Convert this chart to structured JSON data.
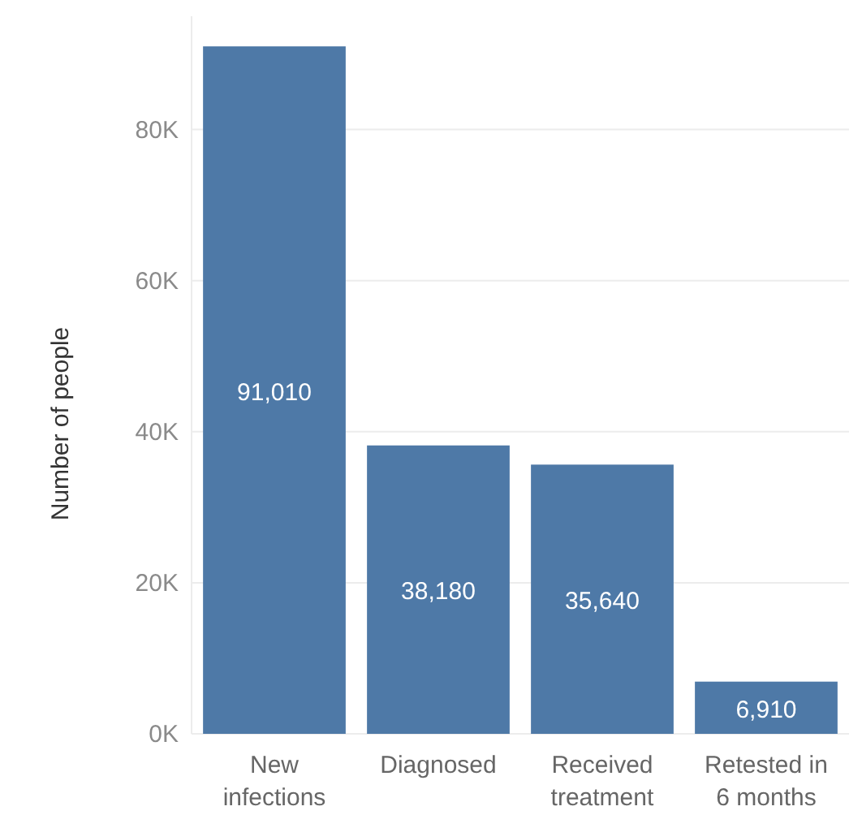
{
  "chart_data": {
    "type": "bar",
    "ylabel": "Number of people",
    "categories": [
      "New infections",
      "Diagnosed",
      "Received treatment",
      "Retested in 6 months"
    ],
    "values": [
      91010,
      38180,
      35640,
      6910
    ],
    "color": "#4e79a7",
    "ylim": [
      0,
      95000
    ],
    "yticks": [
      {
        "value": 0,
        "label": "0K"
      },
      {
        "value": 20000,
        "label": "20K"
      },
      {
        "value": 40000,
        "label": "40K"
      },
      {
        "value": 60000,
        "label": "60K"
      },
      {
        "value": 80000,
        "label": "80K"
      }
    ],
    "value_labels": [
      "91,010",
      "38,180",
      "35,640",
      "6,910"
    ],
    "grid": "y"
  }
}
